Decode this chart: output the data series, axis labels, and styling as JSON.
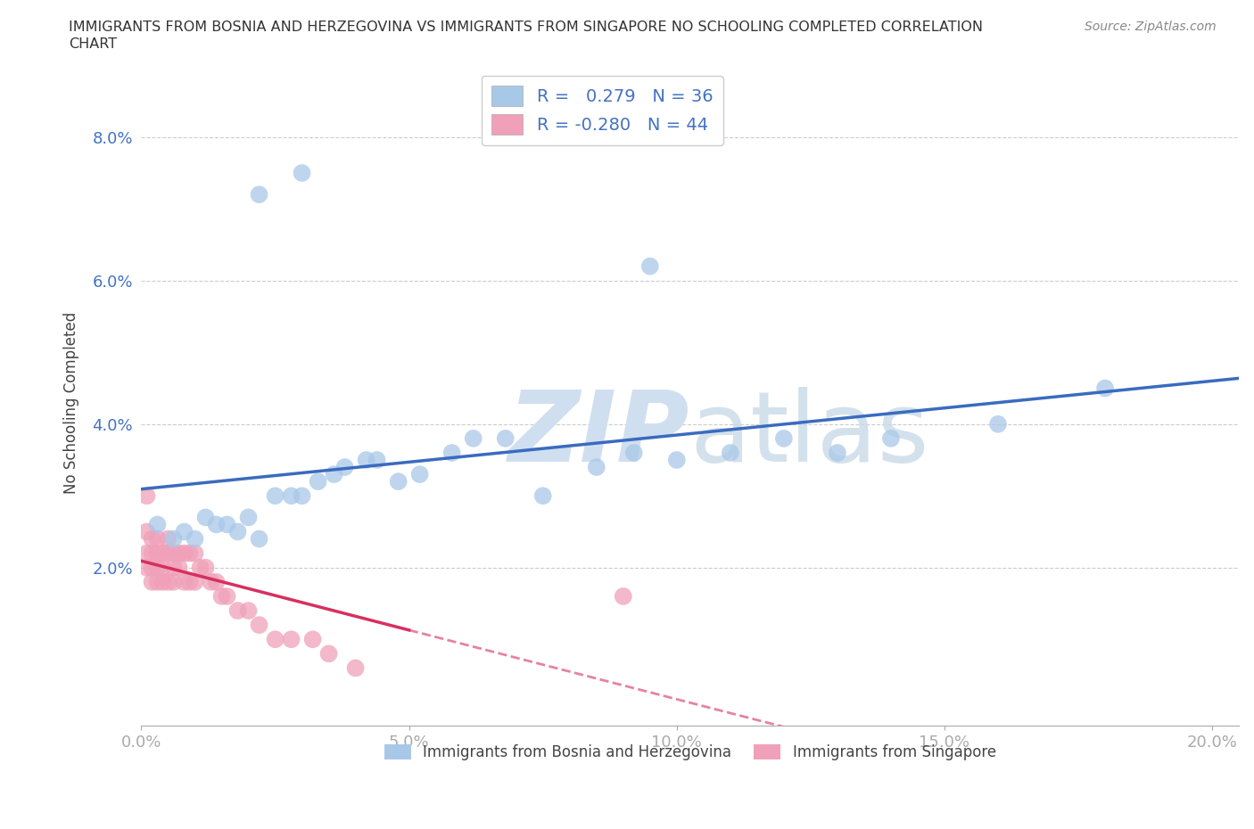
{
  "title_line1": "IMMIGRANTS FROM BOSNIA AND HERZEGOVINA VS IMMIGRANTS FROM SINGAPORE NO SCHOOLING COMPLETED CORRELATION",
  "title_line2": "CHART",
  "source": "Source: ZipAtlas.com",
  "xlabel_blue": "Immigrants from Bosnia and Herzegovina",
  "xlabel_pink": "Immigrants from Singapore",
  "ylabel": "No Schooling Completed",
  "xlim": [
    0.0,
    0.205
  ],
  "ylim": [
    -0.002,
    0.088
  ],
  "xticks": [
    0.0,
    0.05,
    0.1,
    0.15,
    0.2
  ],
  "yticks": [
    0.02,
    0.04,
    0.06,
    0.08
  ],
  "ytick_labels": [
    "2.0%",
    "4.0%",
    "6.0%",
    "8.0%"
  ],
  "xtick_labels": [
    "0.0%",
    "5.0%",
    "10.0%",
    "15.0%",
    "20.0%"
  ],
  "legend_r_blue": " 0.279",
  "legend_n_blue": "36",
  "legend_r_pink": "-0.280",
  "legend_n_pink": "44",
  "blue_color": "#a8c8e8",
  "blue_line_color": "#3a6bbf",
  "pink_color": "#f0a0b8",
  "pink_line_color": "#d63060",
  "blue_scatter_x": [
    0.003,
    0.006,
    0.008,
    0.01,
    0.012,
    0.014,
    0.016,
    0.018,
    0.02,
    0.022,
    0.025,
    0.028,
    0.03,
    0.033,
    0.036,
    0.038,
    0.042,
    0.044,
    0.048,
    0.052,
    0.058,
    0.062,
    0.068,
    0.075,
    0.085,
    0.092,
    0.1,
    0.11,
    0.12,
    0.13,
    0.14,
    0.16,
    0.18,
    0.095,
    0.022,
    0.03
  ],
  "blue_scatter_y": [
    0.026,
    0.024,
    0.025,
    0.024,
    0.027,
    0.026,
    0.026,
    0.025,
    0.027,
    0.024,
    0.03,
    0.03,
    0.03,
    0.032,
    0.033,
    0.034,
    0.035,
    0.035,
    0.032,
    0.033,
    0.036,
    0.038,
    0.038,
    0.03,
    0.034,
    0.036,
    0.035,
    0.036,
    0.038,
    0.036,
    0.038,
    0.04,
    0.045,
    0.062,
    0.072,
    0.075
  ],
  "pink_scatter_x": [
    0.001,
    0.001,
    0.001,
    0.002,
    0.002,
    0.002,
    0.002,
    0.003,
    0.003,
    0.003,
    0.003,
    0.004,
    0.004,
    0.004,
    0.005,
    0.005,
    0.005,
    0.006,
    0.006,
    0.006,
    0.007,
    0.007,
    0.008,
    0.008,
    0.009,
    0.009,
    0.01,
    0.01,
    0.011,
    0.012,
    0.013,
    0.014,
    0.015,
    0.016,
    0.018,
    0.02,
    0.022,
    0.025,
    0.028,
    0.032,
    0.035,
    0.04,
    0.09,
    0.001
  ],
  "pink_scatter_y": [
    0.022,
    0.02,
    0.025,
    0.022,
    0.02,
    0.018,
    0.024,
    0.022,
    0.02,
    0.018,
    0.024,
    0.022,
    0.02,
    0.018,
    0.024,
    0.022,
    0.018,
    0.022,
    0.02,
    0.018,
    0.022,
    0.02,
    0.022,
    0.018,
    0.022,
    0.018,
    0.022,
    0.018,
    0.02,
    0.02,
    0.018,
    0.018,
    0.016,
    0.016,
    0.014,
    0.014,
    0.012,
    0.01,
    0.01,
    0.01,
    0.008,
    0.006,
    0.016,
    0.03
  ],
  "background_color": "#ffffff",
  "grid_color": "#cccccc",
  "watermark_text": "ZIPatlas",
  "watermark_color": "#d0dff0",
  "tick_color": "#4472c4"
}
